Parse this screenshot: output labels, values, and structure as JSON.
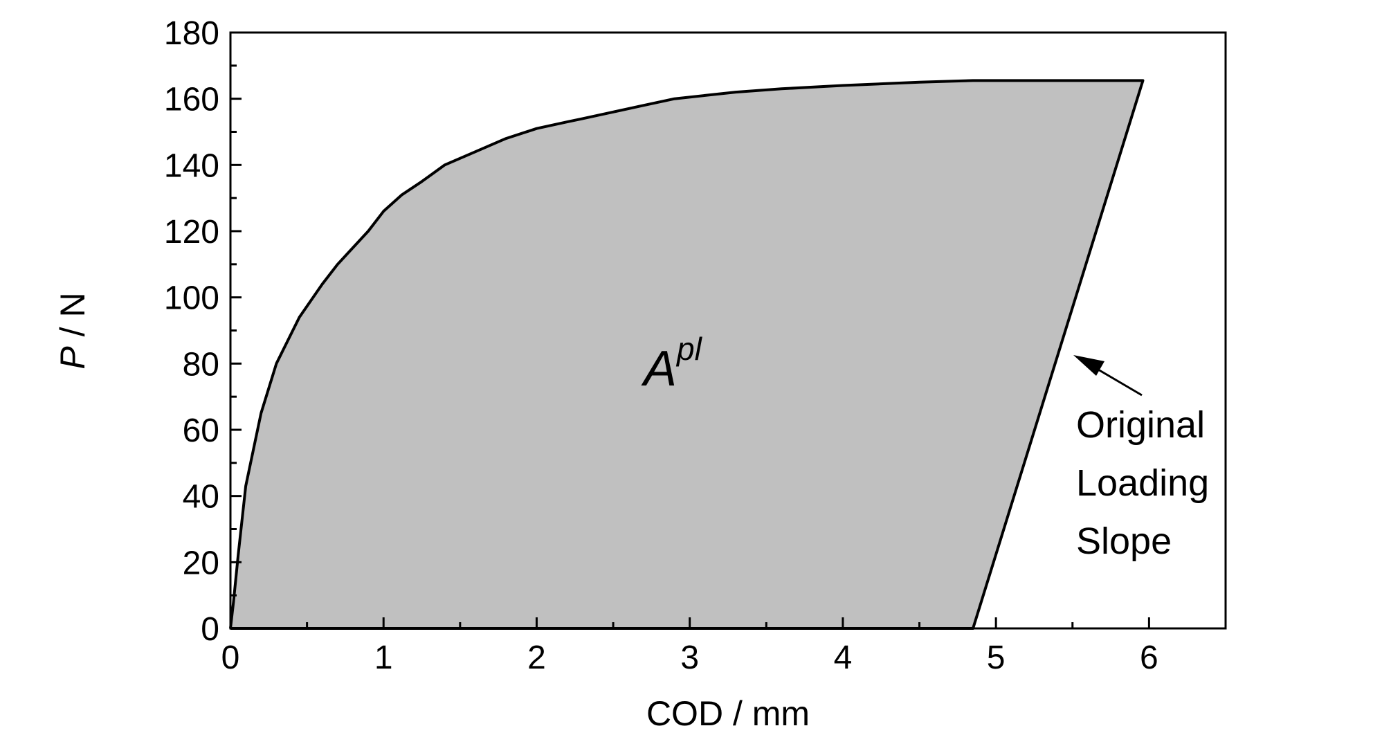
{
  "chart_data": {
    "type": "area",
    "xlabel": "COD / mm",
    "ylabel_italic": "P",
    "ylabel_rest": " / N",
    "xlim": [
      0,
      6.5
    ],
    "ylim": [
      0,
      180
    ],
    "xticks": [
      0,
      1,
      2,
      3,
      4,
      5,
      6
    ],
    "xticks_minor": [
      0.5,
      1.5,
      2.5,
      3.5,
      4.5,
      5.5
    ],
    "yticks": [
      0,
      20,
      40,
      60,
      80,
      100,
      120,
      140,
      160,
      180
    ],
    "yticks_minor": [
      10,
      30,
      50,
      70,
      90,
      110,
      130,
      150,
      170
    ],
    "fill_color": "#c0c0c0",
    "line_color": "#000000",
    "series": [
      {
        "x": [
          0,
          0.02,
          0.05,
          0.1,
          0.2,
          0.3,
          0.45,
          0.6,
          0.7,
          0.8,
          0.9,
          1.0,
          1.12,
          1.25,
          1.4,
          1.6,
          1.8,
          2.0,
          2.2,
          2.3,
          2.5,
          2.7,
          2.9,
          3.1,
          3.3,
          3.6,
          4.0,
          4.5,
          4.85,
          5.2,
          5.96,
          4.85,
          0
        ],
        "y": [
          0,
          8,
          22,
          43,
          65,
          80,
          94,
          104,
          110,
          115,
          120,
          126,
          131,
          135,
          140,
          144,
          148,
          151,
          153,
          154,
          156,
          158,
          160,
          161,
          162,
          163,
          164,
          165,
          165.5,
          165.5,
          165.5,
          0,
          0
        ]
      }
    ],
    "annotations": {
      "area_label": "A",
      "area_label_sup": "pl",
      "arrow_text": [
        "Original",
        "Loading",
        "Slope"
      ]
    }
  }
}
